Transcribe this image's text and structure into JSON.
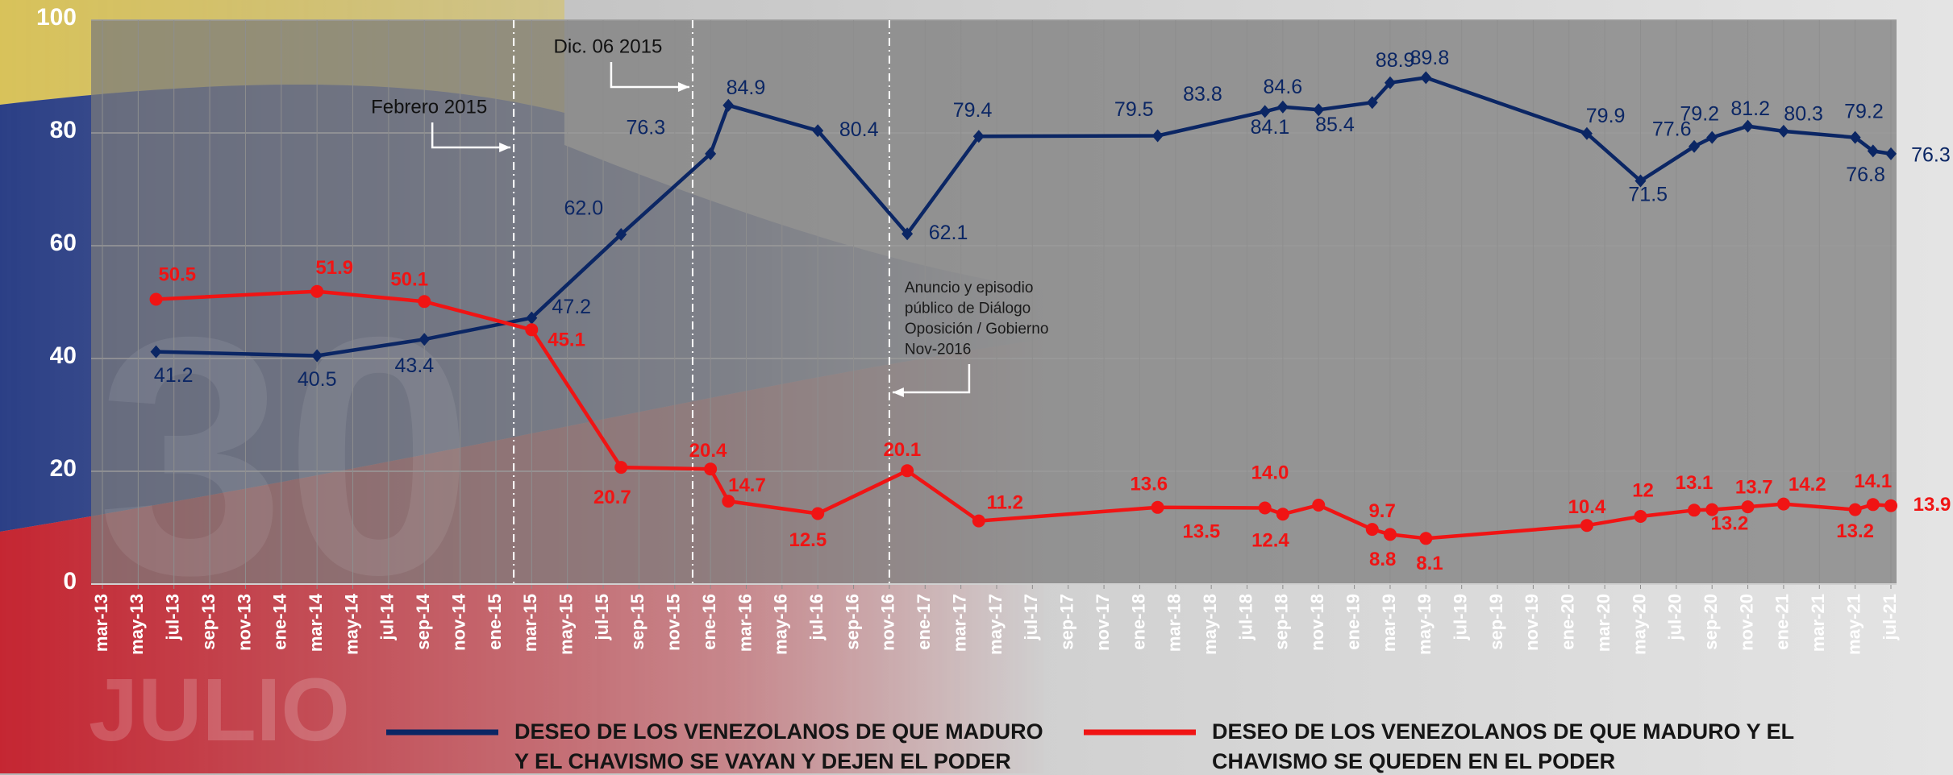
{
  "chart_data": {
    "type": "line",
    "x": [
      "2013-06",
      "2014-03",
      "2014-09",
      "2015-03",
      "2015-08",
      "2016-01",
      "2016-02",
      "2016-07",
      "2016-12",
      "2017-04",
      "2018-02",
      "2018-08",
      "2018-09",
      "2018-11",
      "2019-02",
      "2019-03",
      "2019-05",
      "2020-02",
      "2020-05",
      "2020-08",
      "2020-09",
      "2020-11",
      "2021-01",
      "2021-05",
      "2021-06",
      "2021-07"
    ],
    "series": [
      {
        "name": "DESEO DE LOS VENEZOLANOS DE QUE MADURO Y EL CHAVISMO SE VAYAN Y DEJEN EL PODER",
        "color": "#0b2664",
        "marker": "diamond",
        "values": [
          41.2,
          40.5,
          43.4,
          47.2,
          62,
          76.3,
          84.9,
          80.4,
          62.1,
          79.4,
          79.5,
          83.8,
          84.6,
          84.1,
          85.4,
          88.9,
          89.8,
          79.9,
          71.5,
          77.6,
          79.2,
          81.2,
          80.3,
          79.2,
          76.8,
          76.3
        ],
        "value_labels": [
          "41.2",
          "40.5",
          "43.4",
          "47.2",
          "62.0",
          "76.3",
          "84.9",
          "80.4",
          "62.1",
          "79.4",
          "79.5",
          "83.8",
          "84.6",
          "84.1",
          "85.4",
          "88.9",
          "89.8",
          "79.9",
          "71.5",
          "77.6",
          "79.2",
          "81.2",
          "80.3",
          "79.2",
          "76.8",
          "76.3"
        ]
      },
      {
        "name": "DESEO DE LOS VENEZOLANOS DE QUE MADURO Y EL CHAVISMO SE QUEDEN EN EL PODER",
        "color": "#f01414",
        "marker": "circle",
        "values": [
          50.5,
          51.9,
          50.1,
          45.1,
          20.7,
          20.4,
          14.7,
          12.5,
          20.1,
          11.2,
          13.6,
          13.5,
          12.4,
          14,
          9.7,
          8.8,
          8.1,
          10.4,
          12,
          13.1,
          13.2,
          13.7,
          14.2,
          13.2,
          14.1,
          13.9
        ],
        "value_labels": [
          "50.5",
          "51.9",
          "50.1",
          "45.1",
          "20.7",
          "20.4",
          "14.7",
          "12.5",
          "20.1",
          "11.2",
          "13.6",
          "13.5",
          "12.4",
          "14.0",
          "9.7",
          "8.8",
          "8.1",
          "10.4",
          "12",
          "13.1",
          "13.2",
          "13.7",
          "14.2",
          "13.2",
          "14.1",
          "13.9"
        ]
      }
    ],
    "xlim": [
      "2013-03",
      "2021-07"
    ],
    "xticks": [
      {
        "value": "2013-03",
        "label": "mar-13"
      },
      {
        "value": "2013-05",
        "label": "may-13"
      },
      {
        "value": "2013-07",
        "label": "jul-13"
      },
      {
        "value": "2013-09",
        "label": "sep-13"
      },
      {
        "value": "2013-11",
        "label": "nov-13"
      },
      {
        "value": "2014-01",
        "label": "ene-14"
      },
      {
        "value": "2014-03",
        "label": "mar-14"
      },
      {
        "value": "2014-05",
        "label": "may-14"
      },
      {
        "value": "2014-07",
        "label": "jul-14"
      },
      {
        "value": "2014-09",
        "label": "sep-14"
      },
      {
        "value": "2014-11",
        "label": "nov-14"
      },
      {
        "value": "2015-01",
        "label": "ene-15"
      },
      {
        "value": "2015-03",
        "label": "mar-15"
      },
      {
        "value": "2015-05",
        "label": "may-15"
      },
      {
        "value": "2015-07",
        "label": "jul-15"
      },
      {
        "value": "2015-09",
        "label": "sep-15"
      },
      {
        "value": "2015-11",
        "label": "nov-15"
      },
      {
        "value": "2016-01",
        "label": "ene-16"
      },
      {
        "value": "2016-03",
        "label": "mar-16"
      },
      {
        "value": "2016-05",
        "label": "may-16"
      },
      {
        "value": "2016-07",
        "label": "jul-16"
      },
      {
        "value": "2016-09",
        "label": "sep-16"
      },
      {
        "value": "2016-11",
        "label": "nov-16"
      },
      {
        "value": "2017-01",
        "label": "ene-17"
      },
      {
        "value": "2017-03",
        "label": "mar-17"
      },
      {
        "value": "2017-05",
        "label": "may-17"
      },
      {
        "value": "2017-07",
        "label": "jul-17"
      },
      {
        "value": "2017-09",
        "label": "sep-17"
      },
      {
        "value": "2017-11",
        "label": "nov-17"
      },
      {
        "value": "2018-01",
        "label": "ene-18"
      },
      {
        "value": "2018-03",
        "label": "mar-18"
      },
      {
        "value": "2018-05",
        "label": "may-18"
      },
      {
        "value": "2018-07",
        "label": "jul-18"
      },
      {
        "value": "2018-09",
        "label": "sep-18"
      },
      {
        "value": "2018-11",
        "label": "nov-18"
      },
      {
        "value": "2019-01",
        "label": "ene-19"
      },
      {
        "value": "2019-03",
        "label": "mar-19"
      },
      {
        "value": "2019-05",
        "label": "may-19"
      },
      {
        "value": "2019-07",
        "label": "jul-19"
      },
      {
        "value": "2019-09",
        "label": "sep-19"
      },
      {
        "value": "2019-11",
        "label": "nov-19"
      },
      {
        "value": "2020-01",
        "label": "ene-20"
      },
      {
        "value": "2020-03",
        "label": "mar-20"
      },
      {
        "value": "2020-05",
        "label": "may-20"
      },
      {
        "value": "2020-07",
        "label": "jul-20"
      },
      {
        "value": "2020-09",
        "label": "sep-20"
      },
      {
        "value": "2020-11",
        "label": "nov-20"
      },
      {
        "value": "2021-01",
        "label": "ene-21"
      },
      {
        "value": "2021-03",
        "label": "mar-21"
      },
      {
        "value": "2021-05",
        "label": "may-21"
      },
      {
        "value": "2021-07",
        "label": "jul-21"
      }
    ],
    "ylim": [
      0,
      100
    ],
    "yticks": [
      0,
      20,
      40,
      60,
      80,
      100
    ],
    "grid": true,
    "legend": "bottom",
    "annotations": [
      {
        "x": "2015-02",
        "text": [
          "Febrero 2015"
        ]
      },
      {
        "x": "2015-12",
        "text": [
          "Dic. 06 2015"
        ]
      },
      {
        "x": "2016-11",
        "text": [
          "Anuncio y episodio",
          "público de Diálogo",
          "Oposición / Gobierno",
          "Nov-2016"
        ]
      }
    ],
    "background_text": [
      "30",
      "JULIO"
    ]
  }
}
